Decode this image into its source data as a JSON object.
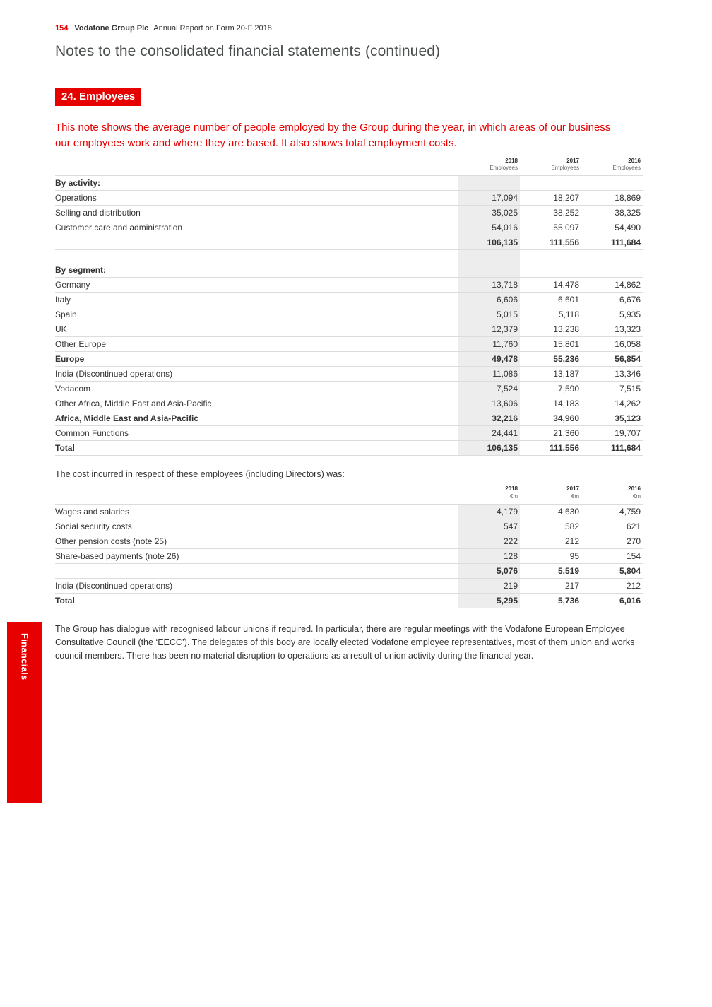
{
  "page": {
    "page_number": "154",
    "brand": "Vodafone Group Plc",
    "report_title": "Annual Report on Form 20-F 2018",
    "section_title": "Notes to the consolidated financial statements (continued)",
    "note_label": "24. Employees",
    "intro": "This note shows the average number of people employed by the Group during the year, in which areas of our business our employees work and where they are based. It also shows total employment costs.",
    "sidebar_tab": "Financials"
  },
  "colors": {
    "brand_red": "#e60000",
    "shaded_column": "#ededed",
    "title_grey": "#4a4d4e"
  },
  "employees_table": {
    "columns": [
      {
        "year": "2018",
        "unit": "Employees"
      },
      {
        "year": "2017",
        "unit": "Employees"
      },
      {
        "year": "2016",
        "unit": "Employees"
      }
    ],
    "rows": [
      {
        "type": "section",
        "label": "By activity:"
      },
      {
        "label": "Operations",
        "values": [
          "17,094",
          "18,207",
          "18,869"
        ]
      },
      {
        "label": "Selling and distribution",
        "values": [
          "35,025",
          "38,252",
          "38,325"
        ]
      },
      {
        "label": "Customer care and administration",
        "values": [
          "54,016",
          "55,097",
          "54,490"
        ]
      },
      {
        "type": "total",
        "label": "",
        "values": [
          "106,135",
          "111,556",
          "111,684"
        ]
      },
      {
        "type": "spacer"
      },
      {
        "type": "section",
        "label": "By segment:"
      },
      {
        "label": "Germany",
        "values": [
          "13,718",
          "14,478",
          "14,862"
        ]
      },
      {
        "label": "Italy",
        "values": [
          "6,606",
          "6,601",
          "6,676"
        ]
      },
      {
        "label": "Spain",
        "values": [
          "5,015",
          "5,118",
          "5,935"
        ]
      },
      {
        "label": "UK",
        "values": [
          "12,379",
          "13,238",
          "13,323"
        ]
      },
      {
        "label": "Other Europe",
        "values": [
          "11,760",
          "15,801",
          "16,058"
        ]
      },
      {
        "type": "total",
        "label": "Europe",
        "values": [
          "49,478",
          "55,236",
          "56,854"
        ]
      },
      {
        "label": "India (Discontinued operations)",
        "values": [
          "11,086",
          "13,187",
          "13,346"
        ]
      },
      {
        "label": "Vodacom",
        "values": [
          "7,524",
          "7,590",
          "7,515"
        ]
      },
      {
        "label": "Other Africa, Middle East and Asia-Pacific",
        "values": [
          "13,606",
          "14,183",
          "14,262"
        ]
      },
      {
        "type": "total",
        "label": "Africa, Middle East and Asia-Pacific",
        "values": [
          "32,216",
          "34,960",
          "35,123"
        ]
      },
      {
        "label": "Common Functions",
        "values": [
          "24,441",
          "21,360",
          "19,707"
        ]
      },
      {
        "type": "total",
        "label": "Total",
        "values": [
          "106,135",
          "111,556",
          "111,684"
        ]
      }
    ]
  },
  "costs_intro": "The cost incurred in respect of these employees (including Directors) was:",
  "costs_table": {
    "columns": [
      {
        "year": "2018",
        "unit": "€m"
      },
      {
        "year": "2017",
        "unit": "€m"
      },
      {
        "year": "2016",
        "unit": "€m"
      }
    ],
    "rows": [
      {
        "label": "Wages and salaries",
        "values": [
          "4,179",
          "4,630",
          "4,759"
        ]
      },
      {
        "label": "Social security costs",
        "values": [
          "547",
          "582",
          "621"
        ]
      },
      {
        "label": "Other pension costs (note 25)",
        "values": [
          "222",
          "212",
          "270"
        ]
      },
      {
        "label": "Share-based payments (note 26)",
        "values": [
          "128",
          "95",
          "154"
        ]
      },
      {
        "type": "subtotal",
        "label": "",
        "values": [
          "5,076",
          "5,519",
          "5,804"
        ]
      },
      {
        "label": "India (Discontinued operations)",
        "values": [
          "219",
          "217",
          "212"
        ]
      },
      {
        "type": "total",
        "label": "Total",
        "values": [
          "5,295",
          "5,736",
          "6,016"
        ]
      }
    ]
  },
  "footer_paragraph": "The Group has dialogue with recognised labour unions if required. In particular, there are regular meetings with the Vodafone European Employee Consultative Council (the ‘EECC’). The delegates of this body are locally elected Vodafone employee representatives, most of them union and works council members. There has been no material disruption to operations as a result of union activity during the financial year."
}
